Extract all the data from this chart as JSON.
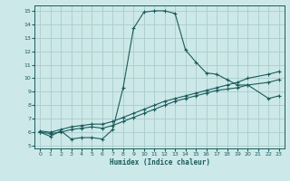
{
  "xlabel": "Humidex (Indice chaleur)",
  "bg_color": "#cde8e8",
  "grid_color": "#aacccc",
  "line_color": "#1a5c5c",
  "xlim": [
    -0.5,
    23.5
  ],
  "ylim": [
    4.8,
    15.4
  ],
  "xticks": [
    0,
    1,
    2,
    3,
    4,
    5,
    6,
    7,
    8,
    9,
    10,
    11,
    12,
    13,
    14,
    15,
    16,
    17,
    18,
    19,
    20,
    21,
    22,
    23
  ],
  "yticks": [
    5,
    6,
    7,
    8,
    9,
    10,
    11,
    12,
    13,
    14,
    15
  ],
  "line1_x": [
    0,
    1,
    2,
    3,
    4,
    5,
    6,
    7,
    8,
    9,
    10,
    11,
    12,
    13,
    14,
    15,
    16,
    17,
    18,
    19,
    20,
    22,
    23
  ],
  "line1_y": [
    6.0,
    5.7,
    6.1,
    5.5,
    5.6,
    5.6,
    5.5,
    6.2,
    9.3,
    13.7,
    14.9,
    15.0,
    15.0,
    14.8,
    12.1,
    11.2,
    10.4,
    10.3,
    9.9,
    9.5,
    9.5,
    8.5,
    8.7
  ],
  "line2_x": [
    0,
    1,
    2,
    3,
    4,
    5,
    6,
    7,
    8,
    9,
    10,
    11,
    12,
    13,
    14,
    15,
    16,
    17,
    18,
    19,
    20,
    22,
    23
  ],
  "line2_y": [
    6.1,
    6.0,
    6.2,
    6.4,
    6.5,
    6.6,
    6.6,
    6.8,
    7.1,
    7.4,
    7.7,
    8.0,
    8.3,
    8.5,
    8.7,
    8.9,
    9.1,
    9.3,
    9.5,
    9.7,
    10.0,
    10.3,
    10.5
  ],
  "line3_x": [
    0,
    1,
    2,
    3,
    4,
    5,
    6,
    7,
    8,
    9,
    10,
    11,
    12,
    13,
    14,
    15,
    16,
    17,
    18,
    19,
    20,
    22,
    23
  ],
  "line3_y": [
    6.0,
    5.9,
    6.0,
    6.2,
    6.3,
    6.4,
    6.3,
    6.5,
    6.8,
    7.1,
    7.4,
    7.7,
    8.0,
    8.3,
    8.5,
    8.7,
    8.9,
    9.1,
    9.2,
    9.3,
    9.5,
    9.7,
    9.9
  ]
}
